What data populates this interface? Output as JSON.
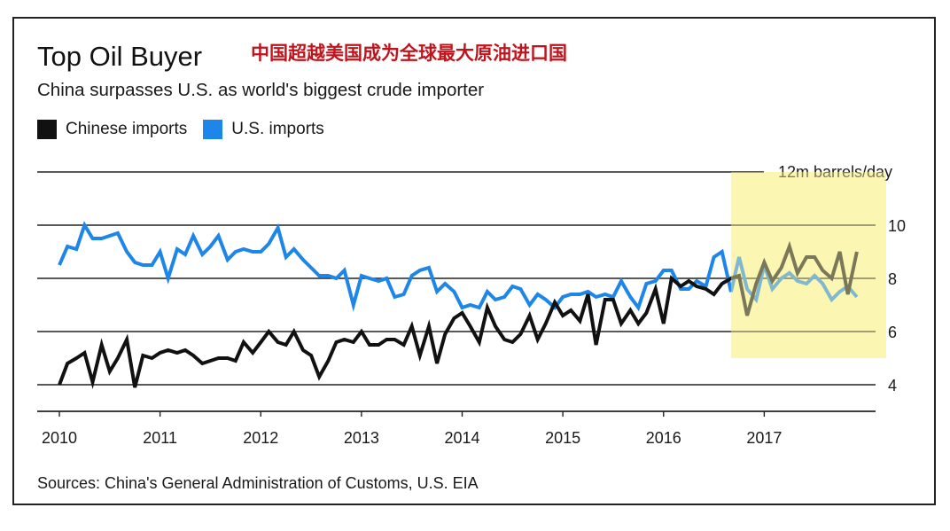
{
  "chart_data": {
    "type": "line",
    "title": "Top Oil Buyer",
    "title_cn": "中国超越美国成为全球最大原油进口国",
    "subtitle": "China surpasses U.S. as world's biggest crude importer",
    "unit_label": "12m barrels/day",
    "source": "Sources: China's General Administration of Customs, U.S. EIA",
    "ylim": [
      3,
      12
    ],
    "yticks": [
      4,
      6,
      8,
      10
    ],
    "xlim": [
      2010,
      2018
    ],
    "xticks": [
      "2010",
      "2011",
      "2012",
      "2013",
      "2014",
      "2015",
      "2016",
      "2017"
    ],
    "highlight": {
      "x_start": 2016.67,
      "x_end": 2018.0,
      "y_min": 5,
      "y_max": 12,
      "color": "#fbf7b2"
    },
    "series": [
      {
        "name": "Chinese imports",
        "color": "#111111",
        "x": [
          2010.0,
          2010.08,
          2010.17,
          2010.25,
          2010.33,
          2010.42,
          2010.5,
          2010.58,
          2010.67,
          2010.75,
          2010.83,
          2010.92,
          2011.0,
          2011.08,
          2011.17,
          2011.25,
          2011.33,
          2011.42,
          2011.5,
          2011.58,
          2011.67,
          2011.75,
          2011.83,
          2011.92,
          2012.0,
          2012.08,
          2012.17,
          2012.25,
          2012.33,
          2012.42,
          2012.5,
          2012.58,
          2012.67,
          2012.75,
          2012.83,
          2012.92,
          2013.0,
          2013.08,
          2013.17,
          2013.25,
          2013.33,
          2013.42,
          2013.5,
          2013.58,
          2013.67,
          2013.75,
          2013.83,
          2013.92,
          2014.0,
          2014.08,
          2014.17,
          2014.25,
          2014.33,
          2014.42,
          2014.5,
          2014.58,
          2014.67,
          2014.75,
          2014.83,
          2014.92,
          2015.0,
          2015.08,
          2015.17,
          2015.25,
          2015.33,
          2015.42,
          2015.5,
          2015.58,
          2015.67,
          2015.75,
          2015.83,
          2015.92,
          2016.0,
          2016.08,
          2016.17,
          2016.25,
          2016.33,
          2016.42,
          2016.5,
          2016.58,
          2016.67,
          2016.75,
          2016.83,
          2016.92,
          2017.0,
          2017.08,
          2017.17,
          2017.25,
          2017.33,
          2017.42,
          2017.5,
          2017.58,
          2017.67,
          2017.75,
          2017.83,
          2017.92
        ],
        "values": [
          4.0,
          4.8,
          5.0,
          5.2,
          4.1,
          5.5,
          4.5,
          5.0,
          5.7,
          3.9,
          5.1,
          5.0,
          5.2,
          5.3,
          5.2,
          5.3,
          5.1,
          4.8,
          4.9,
          5.0,
          5.0,
          4.9,
          5.6,
          5.2,
          5.6,
          6.0,
          5.6,
          5.5,
          6.0,
          5.3,
          5.1,
          4.3,
          4.9,
          5.6,
          5.7,
          5.6,
          6.0,
          5.5,
          5.5,
          5.7,
          5.7,
          5.5,
          6.2,
          5.1,
          6.2,
          4.8,
          5.9,
          6.5,
          6.7,
          6.2,
          5.6,
          6.9,
          6.2,
          5.7,
          5.6,
          5.9,
          6.6,
          5.7,
          6.3,
          7.1,
          6.6,
          6.8,
          6.4,
          7.4,
          5.5,
          7.2,
          7.2,
          6.3,
          6.8,
          6.3,
          6.7,
          7.6,
          6.3,
          8.0,
          7.7,
          7.9,
          7.7,
          7.6,
          7.4,
          7.8,
          8.0,
          8.1,
          6.6,
          7.8,
          8.6,
          7.9,
          8.4,
          9.2,
          8.2,
          8.8,
          8.8,
          8.3,
          8.0,
          9.0,
          7.4,
          9.0
        ]
      },
      {
        "name": "U.S. imports",
        "color": "#1d86e8",
        "x": [
          2010.0,
          2010.08,
          2010.17,
          2010.25,
          2010.33,
          2010.42,
          2010.5,
          2010.58,
          2010.67,
          2010.75,
          2010.83,
          2010.92,
          2011.0,
          2011.08,
          2011.17,
          2011.25,
          2011.33,
          2011.42,
          2011.5,
          2011.58,
          2011.67,
          2011.75,
          2011.83,
          2011.92,
          2012.0,
          2012.08,
          2012.17,
          2012.25,
          2012.33,
          2012.42,
          2012.5,
          2012.58,
          2012.67,
          2012.75,
          2012.83,
          2012.92,
          2013.0,
          2013.08,
          2013.17,
          2013.25,
          2013.33,
          2013.42,
          2013.5,
          2013.58,
          2013.67,
          2013.75,
          2013.83,
          2013.92,
          2014.0,
          2014.08,
          2014.17,
          2014.25,
          2014.33,
          2014.42,
          2014.5,
          2014.58,
          2014.67,
          2014.75,
          2014.83,
          2014.92,
          2015.0,
          2015.08,
          2015.17,
          2015.25,
          2015.33,
          2015.42,
          2015.5,
          2015.58,
          2015.67,
          2015.75,
          2015.83,
          2015.92,
          2016.0,
          2016.08,
          2016.17,
          2016.25,
          2016.33,
          2016.42,
          2016.5,
          2016.58,
          2016.67,
          2016.75,
          2016.83,
          2016.92,
          2017.0,
          2017.08,
          2017.17,
          2017.25,
          2017.33,
          2017.42,
          2017.5,
          2017.58,
          2017.67,
          2017.75,
          2017.83,
          2017.92
        ],
        "values": [
          8.5,
          9.2,
          9.1,
          10.0,
          9.5,
          9.5,
          9.6,
          9.7,
          9.0,
          8.6,
          8.5,
          8.5,
          9.0,
          8.0,
          9.1,
          8.9,
          9.6,
          8.9,
          9.2,
          9.6,
          8.7,
          9.0,
          9.1,
          9.0,
          9.0,
          9.3,
          9.9,
          8.8,
          9.1,
          8.7,
          8.4,
          8.1,
          8.1,
          8.0,
          8.3,
          7.0,
          8.1,
          8.0,
          7.9,
          8.0,
          7.3,
          7.4,
          8.1,
          8.3,
          8.4,
          7.5,
          7.8,
          7.5,
          6.9,
          7.0,
          6.9,
          7.5,
          7.2,
          7.3,
          7.7,
          7.6,
          7.0,
          7.4,
          7.2,
          6.9,
          7.3,
          7.4,
          7.4,
          7.5,
          7.3,
          7.4,
          7.3,
          7.9,
          7.3,
          6.9,
          7.8,
          7.9,
          8.3,
          8.3,
          7.6,
          7.6,
          7.9,
          7.7,
          8.8,
          9.0,
          7.5,
          8.8,
          7.6,
          7.2,
          8.5,
          7.6,
          8.0,
          8.2,
          7.9,
          7.8,
          8.1,
          7.8,
          7.2,
          7.5,
          7.7,
          7.3
        ]
      }
    ]
  }
}
